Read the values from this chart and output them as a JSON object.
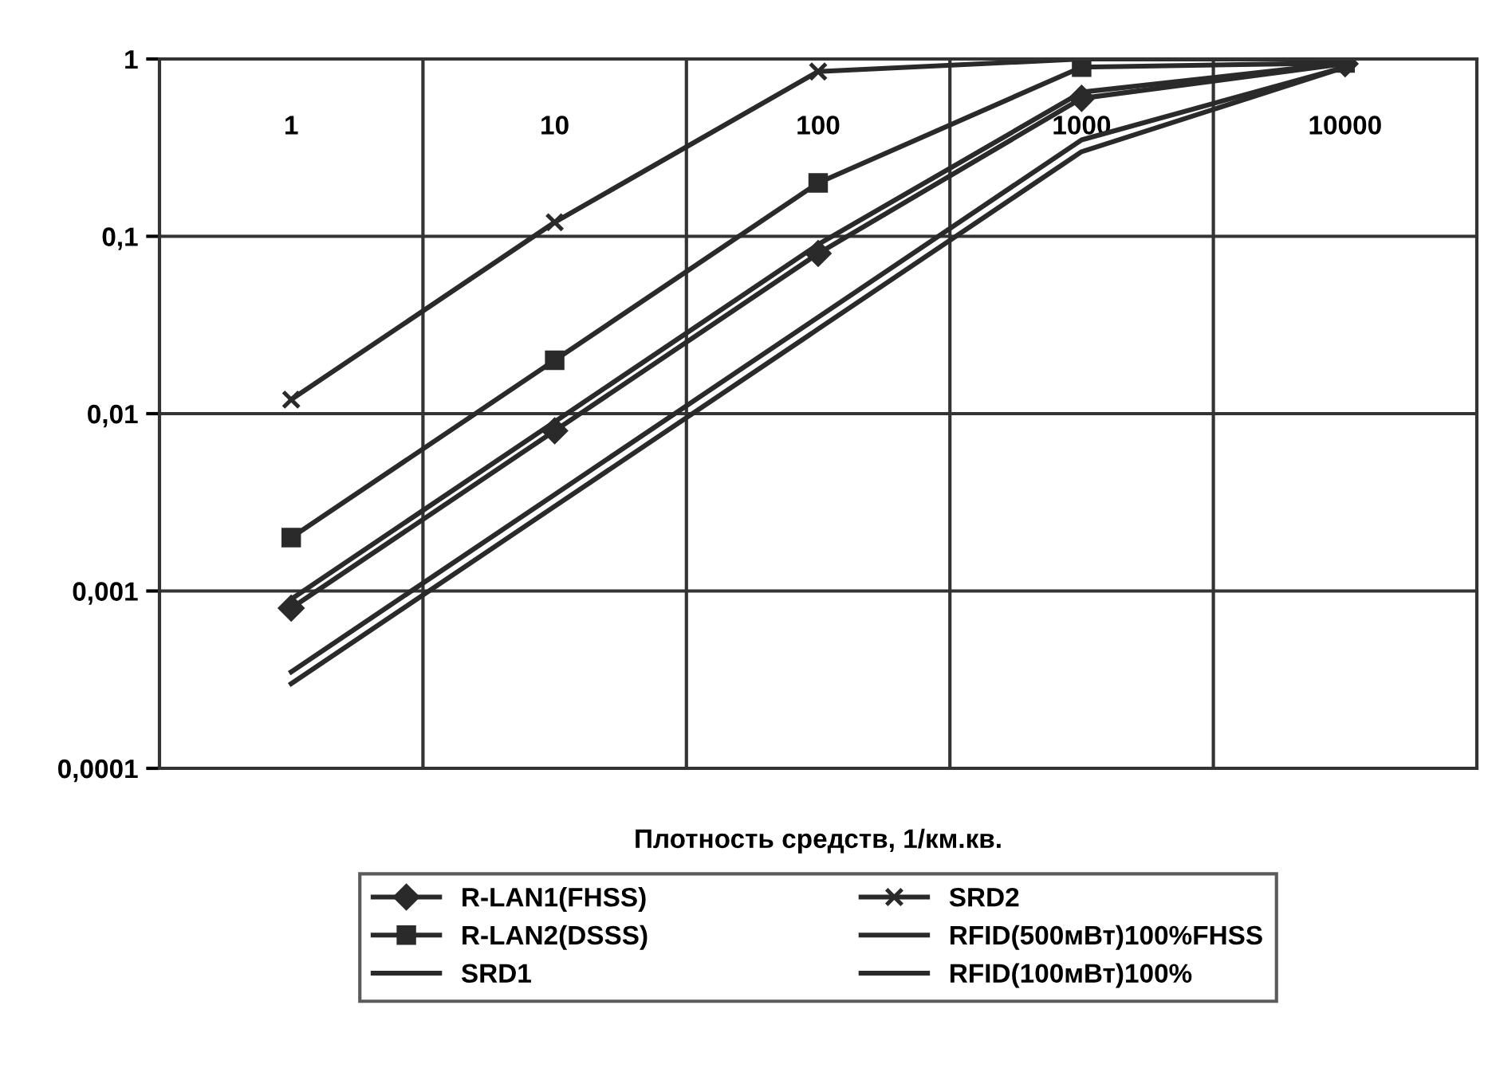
{
  "chart_data": {
    "type": "line",
    "xlabel": "Плотность средств, 1/км.кв.",
    "categories": [
      "1",
      "10",
      "100",
      "1000",
      "10000"
    ],
    "log": "y",
    "ylim": [
      0.0001,
      1
    ],
    "yticks": [
      {
        "value": 0.0001,
        "label": "0,0001"
      },
      {
        "value": 0.001,
        "label": "0,001"
      },
      {
        "value": 0.01,
        "label": "0,01"
      },
      {
        "value": 0.1,
        "label": "0,1"
      },
      1
    ],
    "grid": true,
    "legend": "bottom",
    "series": [
      {
        "name": "R-LAN1(FHSS)",
        "color": "#2a2a2a",
        "marker": "diamond",
        "values": [
          0.0008,
          0.008,
          0.08,
          0.6,
          0.94
        ]
      },
      {
        "name": "R-LAN2(DSSS)",
        "color": "#2a2a2a",
        "marker": "square",
        "values": [
          0.002,
          0.02,
          0.2,
          0.9,
          0.95
        ]
      },
      {
        "name": "SRD1",
        "color": "#2a2a2a",
        "marker": "none",
        "values": [
          0.0009,
          0.009,
          0.09,
          0.65,
          0.95
        ]
      },
      {
        "name": "SRD2",
        "color": "#2a2a2a",
        "marker": "cross",
        "values": [
          0.012,
          0.12,
          0.85,
          1.0,
          1.0
        ]
      },
      {
        "name": "RFID(500мВт)100%FHSS",
        "color": "#2a2a2a",
        "marker": "none",
        "values": [
          0.00035,
          0.0035,
          0.035,
          0.35,
          0.9
        ]
      },
      {
        "name": "RFID(100мВт)100%",
        "color": "#2a2a2a",
        "marker": "none",
        "values": [
          0.0003,
          0.003,
          0.03,
          0.3,
          0.9
        ]
      }
    ]
  }
}
